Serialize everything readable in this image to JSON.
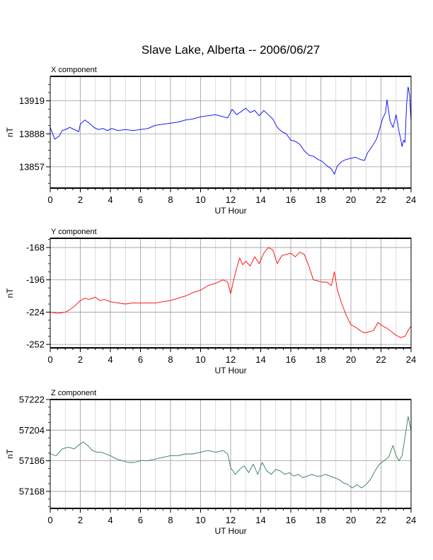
{
  "title": "Slave Lake, Alberta -- 2006/06/27",
  "chart_data": [
    {
      "type": "line",
      "component_label": "X component",
      "xlabel": "UT Hour",
      "ylabel": "nT",
      "xlim": [
        0,
        24
      ],
      "ylim": [
        13837,
        13942
      ],
      "xticks": [
        0,
        2,
        4,
        6,
        8,
        10,
        12,
        14,
        16,
        18,
        20,
        22,
        24
      ],
      "xtick_labels": [
        "0",
        "2",
        "4",
        "6",
        "8",
        "10",
        "12",
        "14",
        "16",
        "18",
        "20",
        "22",
        "24"
      ],
      "yticks": [
        13857,
        13888,
        13919
      ],
      "ytick_labels": [
        "13857",
        "13888",
        "13919"
      ],
      "grid": true,
      "color": "#0000ff",
      "x": [
        0,
        0.3,
        0.6,
        0.8,
        1.0,
        1.3,
        1.6,
        1.9,
        2.0,
        2.3,
        2.6,
        2.9,
        3.2,
        3.5,
        3.8,
        4.1,
        4.5,
        5.0,
        5.5,
        6.0,
        6.5,
        7.0,
        7.5,
        8.0,
        8.5,
        9.0,
        9.5,
        10.0,
        10.5,
        11.0,
        11.5,
        11.8,
        12.1,
        12.4,
        12.7,
        13.0,
        13.3,
        13.6,
        13.9,
        14.2,
        14.5,
        14.8,
        15.1,
        15.4,
        15.7,
        16.0,
        16.3,
        16.6,
        16.9,
        17.2,
        17.5,
        17.8,
        18.1,
        18.4,
        18.7,
        18.9,
        19.1,
        19.4,
        19.7,
        20.0,
        20.3,
        20.6,
        20.9,
        21.1,
        21.4,
        21.7,
        21.9,
        22.1,
        22.3,
        22.4,
        22.6,
        22.8,
        23.0,
        23.1,
        23.2,
        23.3,
        23.4,
        23.5,
        23.6,
        23.7,
        23.8,
        23.9,
        24.0
      ],
      "y": [
        13894,
        13883,
        13886,
        13891,
        13892,
        13894,
        13892,
        13890,
        13897,
        13901,
        13898,
        13894,
        13892,
        13893,
        13891,
        13893,
        13891,
        13892,
        13891,
        13892,
        13893,
        13896,
        13897,
        13898,
        13899,
        13901,
        13902,
        13904,
        13905,
        13906,
        13904,
        13903,
        13911,
        13906,
        13909,
        13912,
        13908,
        13910,
        13905,
        13910,
        13906,
        13902,
        13894,
        13890,
        13888,
        13882,
        13881,
        13878,
        13872,
        13868,
        13867,
        13864,
        13862,
        13858,
        13855,
        13850,
        13858,
        13862,
        13864,
        13865,
        13866,
        13864,
        13863,
        13870,
        13876,
        13883,
        13892,
        13902,
        13908,
        13920,
        13900,
        13894,
        13906,
        13898,
        13890,
        13884,
        13876,
        13882,
        13880,
        13915,
        13932,
        13925,
        13899
      ]
    },
    {
      "type": "line",
      "component_label": "Y component",
      "xlabel": "UT Hour",
      "ylabel": "nT",
      "xlim": [
        0,
        24
      ],
      "ylim": [
        -255,
        -160
      ],
      "xticks": [
        0,
        2,
        4,
        6,
        8,
        10,
        12,
        14,
        16,
        18,
        20,
        22,
        24
      ],
      "xtick_labels": [
        "0",
        "2",
        "4",
        "6",
        "8",
        "10",
        "12",
        "14",
        "16",
        "18",
        "20",
        "22",
        "24"
      ],
      "yticks": [
        -252,
        -224,
        -196,
        -168
      ],
      "ytick_labels": [
        "-252",
        "-224",
        "-196",
        "-168"
      ],
      "grid": true,
      "color": "#ff0000",
      "x": [
        0,
        0.5,
        1.0,
        1.3,
        1.6,
        2.0,
        2.3,
        2.6,
        3.0,
        3.3,
        3.6,
        4.0,
        4.5,
        5.0,
        5.5,
        6.0,
        6.5,
        7.0,
        7.5,
        8.0,
        8.5,
        9.0,
        9.5,
        10.0,
        10.5,
        11.0,
        11.5,
        11.8,
        12.0,
        12.2,
        12.4,
        12.6,
        12.8,
        13.0,
        13.3,
        13.6,
        13.9,
        14.2,
        14.5,
        14.8,
        15.1,
        15.4,
        15.7,
        16.0,
        16.3,
        16.6,
        16.9,
        17.2,
        17.5,
        17.8,
        18.1,
        18.4,
        18.7,
        18.9,
        19.1,
        19.4,
        19.7,
        20.0,
        20.3,
        20.6,
        20.9,
        21.2,
        21.5,
        21.8,
        22.1,
        22.4,
        22.7,
        23.0,
        23.3,
        23.6,
        23.8,
        24.0
      ],
      "y": [
        -224,
        -225,
        -224,
        -222,
        -219,
        -214,
        -212,
        -213,
        -211,
        -214,
        -213,
        -215,
        -216,
        -217,
        -216,
        -216,
        -216,
        -216,
        -215,
        -214,
        -212,
        -210,
        -207,
        -205,
        -201,
        -199,
        -196,
        -198,
        -208,
        -196,
        -186,
        -177,
        -183,
        -180,
        -184,
        -176,
        -182,
        -173,
        -168,
        -170,
        -182,
        -175,
        -174,
        -173,
        -176,
        -172,
        -174,
        -184,
        -196,
        -197,
        -198,
        -198,
        -201,
        -189,
        -205,
        -217,
        -227,
        -235,
        -237,
        -240,
        -242,
        -241,
        -240,
        -233,
        -236,
        -238,
        -241,
        -244,
        -246,
        -245,
        -240,
        -236
      ]
    },
    {
      "type": "line",
      "component_label": "Z component",
      "xlabel": "UT Hour",
      "ylabel": "nT",
      "xlim": [
        0,
        24
      ],
      "ylim": [
        57158,
        57222
      ],
      "xticks": [
        0,
        2,
        4,
        6,
        8,
        10,
        12,
        14,
        16,
        18,
        20,
        22,
        24
      ],
      "xtick_labels": [
        "0",
        "2",
        "4",
        "6",
        "8",
        "10",
        "12",
        "14",
        "16",
        "18",
        "20",
        "22",
        "24"
      ],
      "yticks": [
        57168,
        57186,
        57204,
        57222
      ],
      "ytick_labels": [
        "57168",
        "57186",
        "57204",
        "57222"
      ],
      "grid": true,
      "color": "#2e7d4f",
      "x": [
        0,
        0.4,
        0.8,
        1.2,
        1.6,
        2.0,
        2.2,
        2.5,
        2.8,
        3.1,
        3.4,
        3.7,
        4.0,
        4.4,
        4.8,
        5.2,
        5.6,
        6.0,
        6.5,
        7.0,
        7.5,
        8.0,
        8.5,
        9.0,
        9.5,
        10.0,
        10.5,
        11.0,
        11.5,
        11.8,
        12.0,
        12.3,
        12.6,
        12.9,
        13.2,
        13.5,
        13.8,
        14.1,
        14.4,
        14.7,
        15.0,
        15.3,
        15.6,
        15.9,
        16.2,
        16.5,
        16.8,
        17.1,
        17.4,
        17.7,
        18.0,
        18.3,
        18.6,
        18.9,
        19.2,
        19.5,
        19.8,
        20.1,
        20.4,
        20.7,
        21.0,
        21.3,
        21.6,
        21.9,
        22.2,
        22.5,
        22.8,
        23.0,
        23.2,
        23.4,
        23.6,
        23.8,
        24.0
      ],
      "y": [
        57190,
        57189,
        57193,
        57194,
        57193,
        57196,
        57197,
        57195,
        57192,
        57191,
        57191,
        57190,
        57189,
        57187,
        57186,
        57185,
        57185,
        57186,
        57186,
        57187,
        57188,
        57189,
        57189,
        57190,
        57190,
        57191,
        57192,
        57191,
        57192,
        57190,
        57182,
        57178,
        57181,
        57183,
        57179,
        57184,
        57178,
        57185,
        57180,
        57178,
        57181,
        57180,
        57178,
        57179,
        57177,
        57178,
        57176,
        57177,
        57178,
        57177,
        57177,
        57178,
        57177,
        57176,
        57175,
        57173,
        57172,
        57170,
        57172,
        57170,
        57172,
        57175,
        57180,
        57184,
        57186,
        57188,
        57195,
        57189,
        57186,
        57189,
        57200,
        57212,
        57204
      ]
    }
  ]
}
